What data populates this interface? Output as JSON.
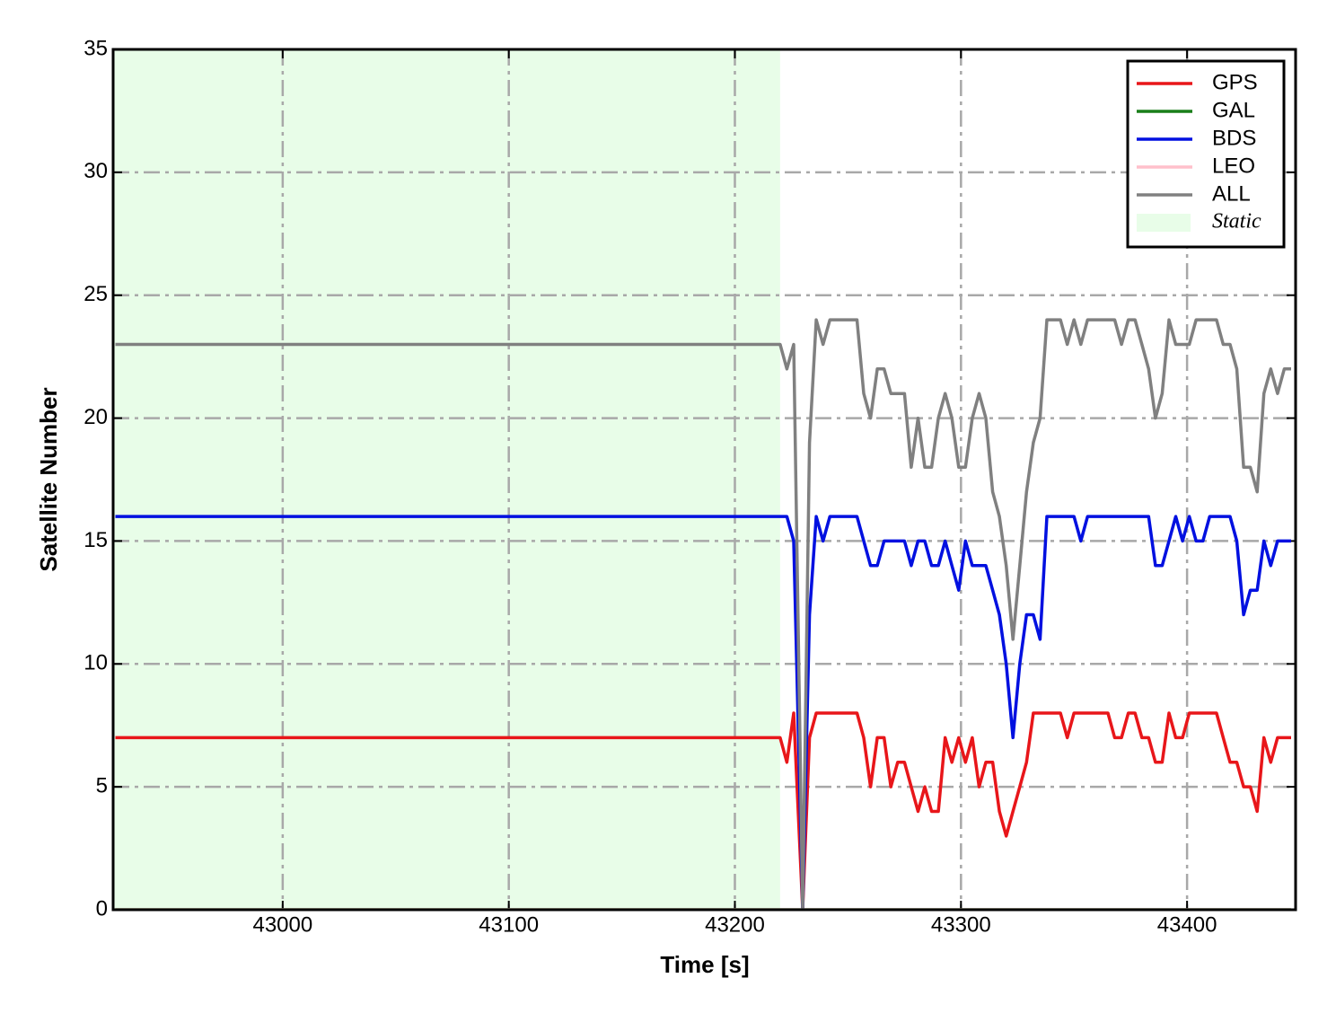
{
  "chart_data": {
    "type": "line",
    "xlabel": "Time [s]",
    "ylabel": "Satellite Number",
    "x": [
      42926,
      43220,
      43223,
      43226,
      43230,
      43233,
      43236,
      43239,
      43242,
      43245,
      43248,
      43251,
      43254,
      43257,
      43260,
      43263,
      43266,
      43269,
      43272,
      43275,
      43278,
      43281,
      43284,
      43287,
      43290,
      43293,
      43296,
      43299,
      43302,
      43305,
      43308,
      43311,
      43314,
      43317,
      43320,
      43323,
      43326,
      43329,
      43332,
      43335,
      43338,
      43341,
      43344,
      43347,
      43350,
      43353,
      43356,
      43359,
      43362,
      43365,
      43368,
      43371,
      43374,
      43377,
      43380,
      43383,
      43386,
      43389,
      43392,
      43395,
      43398,
      43401,
      43404,
      43407,
      43410,
      43413,
      43416,
      43419,
      43422,
      43425,
      43428,
      43431,
      43434,
      43437,
      43440,
      43443,
      43446
    ],
    "series": [
      {
        "name": "GPS",
        "color": "#e8161a",
        "values": [
          7,
          7,
          6,
          8,
          0,
          7,
          8,
          8,
          8,
          8,
          8,
          8,
          8,
          7,
          5,
          7,
          7,
          5,
          6,
          6,
          5,
          4,
          5,
          4,
          4,
          7,
          6,
          7,
          6,
          7,
          5,
          6,
          6,
          4,
          3,
          4,
          5,
          6,
          8,
          8,
          8,
          8,
          8,
          7,
          8,
          8,
          8,
          8,
          8,
          8,
          7,
          7,
          8,
          8,
          7,
          7,
          6,
          6,
          8,
          7,
          7,
          8,
          8,
          8,
          8,
          8,
          7,
          6,
          6,
          5,
          5,
          4,
          7,
          6,
          7,
          7,
          7
        ]
      },
      {
        "name": "GAL",
        "color": "#1a7f1a",
        "values": [
          0,
          0,
          0,
          0,
          0,
          0,
          0,
          0,
          0,
          0,
          0,
          0,
          0,
          0,
          0,
          0,
          0,
          0,
          0,
          0,
          0,
          0,
          0,
          0,
          0,
          0,
          0,
          0,
          0,
          0,
          0,
          0,
          0,
          0,
          0,
          0,
          0,
          0,
          0,
          0,
          0,
          0,
          0,
          0,
          0,
          0,
          0,
          0,
          0,
          0,
          0,
          0,
          0,
          0,
          0,
          0,
          0,
          0,
          0,
          0,
          0,
          0,
          0,
          0,
          0,
          0,
          0,
          0,
          0,
          0,
          0,
          0,
          0,
          0,
          0,
          0,
          0
        ]
      },
      {
        "name": "BDS",
        "color": "#0010e0",
        "values": [
          16,
          16,
          16,
          15,
          0,
          12,
          16,
          15,
          16,
          16,
          16,
          16,
          16,
          15,
          14,
          14,
          15,
          15,
          15,
          15,
          14,
          15,
          15,
          14,
          14,
          15,
          14,
          13,
          15,
          14,
          14,
          14,
          13,
          12,
          10,
          7,
          10,
          12,
          12,
          11,
          16,
          16,
          16,
          16,
          16,
          15,
          16,
          16,
          16,
          16,
          16,
          16,
          16,
          16,
          16,
          16,
          14,
          14,
          15,
          16,
          15,
          16,
          15,
          15,
          16,
          16,
          16,
          16,
          15,
          12,
          13,
          13,
          15,
          14,
          15,
          15,
          15
        ]
      },
      {
        "name": "LEO",
        "color": "#ffc0cb",
        "values": [
          0,
          0,
          0,
          0,
          0,
          0,
          0,
          0,
          0,
          0,
          0,
          0,
          0,
          0,
          0,
          0,
          0,
          0,
          0,
          0,
          0,
          0,
          0,
          0,
          0,
          0,
          0,
          0,
          0,
          0,
          0,
          0,
          0,
          0,
          0,
          0,
          0,
          0,
          0,
          0,
          0,
          0,
          0,
          0,
          0,
          0,
          0,
          0,
          0,
          0,
          0,
          0,
          0,
          0,
          0,
          0,
          0,
          0,
          0,
          0,
          0,
          0,
          0,
          0,
          0,
          0,
          0,
          0,
          0,
          0,
          0,
          0,
          0,
          0,
          0,
          0,
          0
        ]
      },
      {
        "name": "ALL",
        "color": "#808080",
        "values": [
          23,
          23,
          22,
          23,
          0,
          19,
          24,
          23,
          24,
          24,
          24,
          24,
          24,
          21,
          20,
          22,
          22,
          21,
          21,
          21,
          18,
          20,
          18,
          18,
          20,
          21,
          20,
          18,
          18,
          20,
          21,
          20,
          17,
          16,
          14,
          11,
          14,
          17,
          19,
          20,
          24,
          24,
          24,
          23,
          24,
          23,
          24,
          24,
          24,
          24,
          24,
          23,
          24,
          24,
          23,
          22,
          20,
          21,
          24,
          23,
          23,
          23,
          24,
          24,
          24,
          24,
          23,
          23,
          22,
          18,
          18,
          17,
          21,
          22,
          21,
          22,
          22
        ]
      }
    ],
    "span": {
      "name": "Static",
      "range": [
        42925,
        43220
      ],
      "color": "#e8fde8"
    },
    "xlim": [
      42925,
      43448
    ],
    "xticks": [
      43000,
      43100,
      43200,
      43300,
      43400
    ],
    "ylim": [
      0,
      35
    ],
    "yticks": [
      0,
      5,
      10,
      15,
      20,
      25,
      30,
      35
    ],
    "grid": true,
    "legend": "upper right"
  }
}
